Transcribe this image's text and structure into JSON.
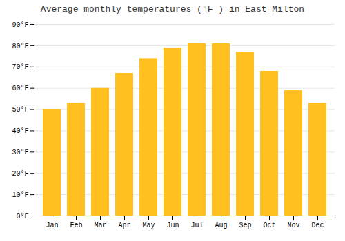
{
  "chart_data": {
    "type": "bar",
    "title": "Average monthly temperatures (°F ) in East Milton",
    "categories": [
      "Jan",
      "Feb",
      "Mar",
      "Apr",
      "May",
      "Jun",
      "Jul",
      "Aug",
      "Sep",
      "Oct",
      "Nov",
      "Dec"
    ],
    "values": [
      50,
      53,
      60,
      67,
      74,
      79,
      81,
      81,
      77,
      68,
      59,
      53
    ],
    "color": "#FFC020",
    "ylim": [
      0,
      90
    ],
    "yticks": [
      {
        "value": 0,
        "label": "0°F"
      },
      {
        "value": 10,
        "label": "10°F"
      },
      {
        "value": 20,
        "label": "20°F"
      },
      {
        "value": 30,
        "label": "30°F"
      },
      {
        "value": 40,
        "label": "40°F"
      },
      {
        "value": 50,
        "label": "50°F"
      },
      {
        "value": 60,
        "label": "60°F"
      },
      {
        "value": 70,
        "label": "70°F"
      },
      {
        "value": 80,
        "label": "80°F"
      },
      {
        "value": 90,
        "label": "90°F"
      }
    ],
    "grid": true
  }
}
